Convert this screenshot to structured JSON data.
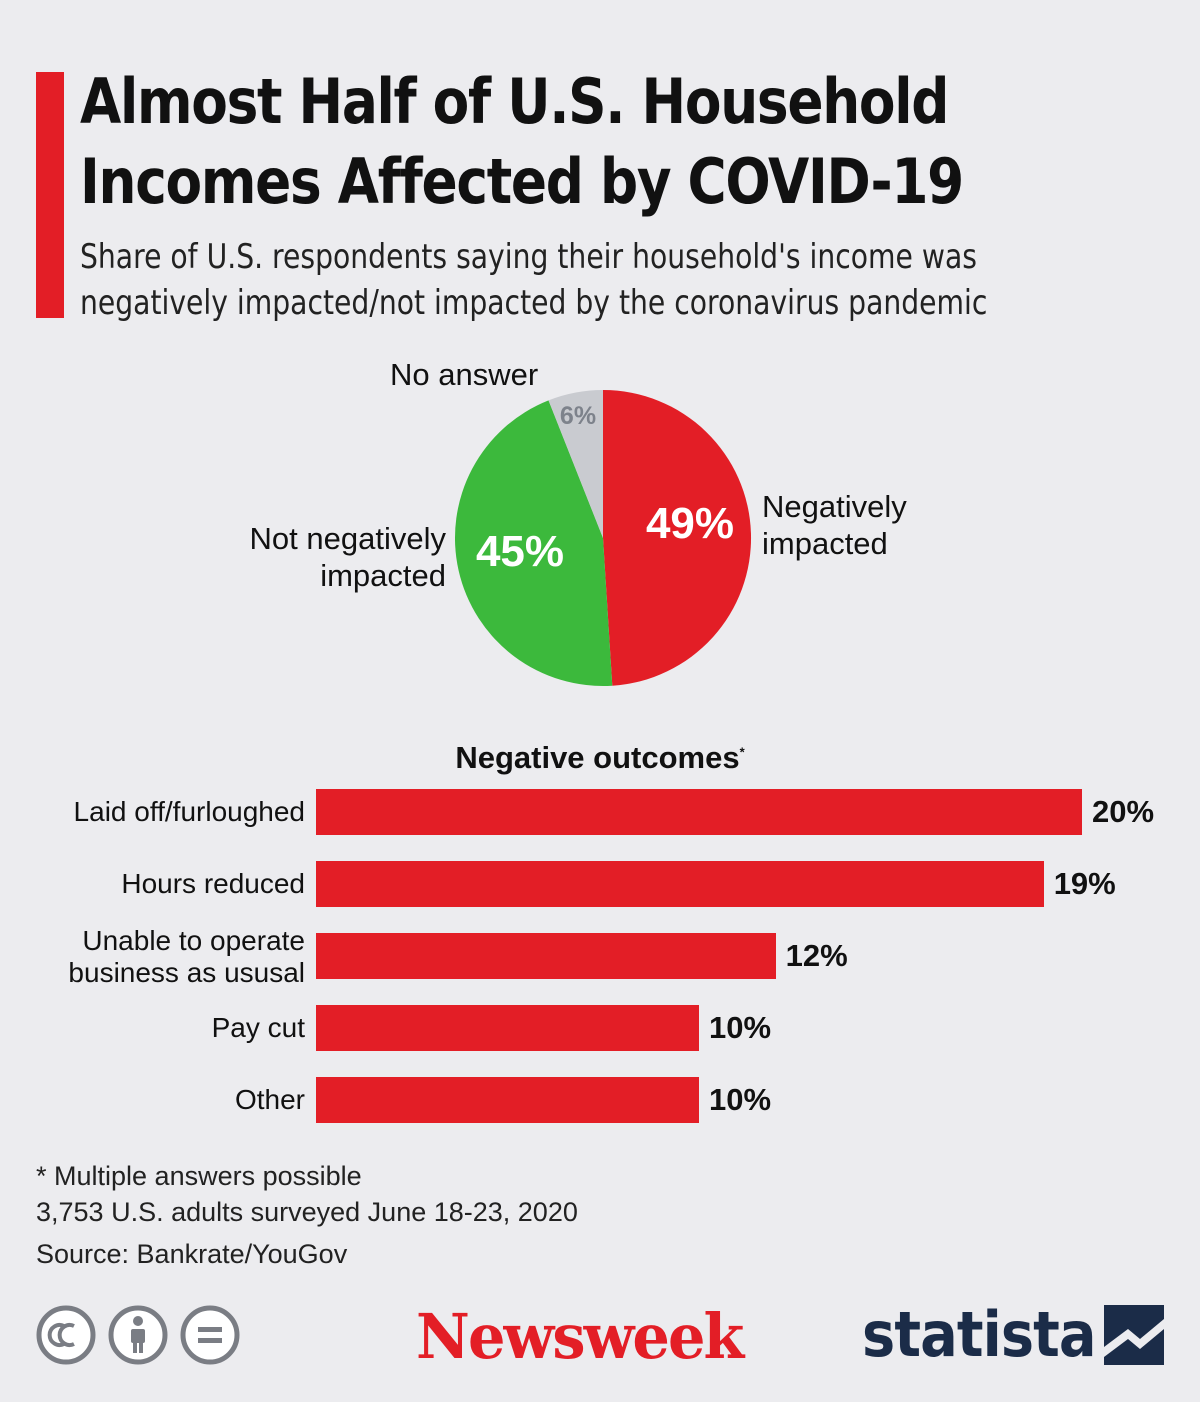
{
  "title_lines": [
    "Almost Half of U.S. Household",
    "Incomes Affected by COVID-19"
  ],
  "subtitle_lines": [
    "Share of U.S. respondents saying their household's income was",
    "negatively impacted/not impacted by the coronavirus pandemic"
  ],
  "colors": {
    "accent": "#e31e26",
    "green": "#3cb93c",
    "gray": "#c9cbd0",
    "navy": "#1b2c48"
  },
  "pie": {
    "labels": {
      "negative": [
        "Negatively",
        "impacted"
      ],
      "not_negative": [
        "Not negatively",
        "impacted"
      ],
      "no_answer": "No answer"
    },
    "value_labels": {
      "negative": "49%",
      "not_negative": "45%",
      "no_answer": "6%"
    }
  },
  "bars": {
    "title": "Negative outcomes",
    "title_mark": "*",
    "items": [
      {
        "label_lines": [
          "Laid off/furloughed"
        ],
        "value_label": "20%"
      },
      {
        "label_lines": [
          "Hours reduced"
        ],
        "value_label": "19%"
      },
      {
        "label_lines": [
          "Unable to operate",
          "business as ususal"
        ],
        "value_label": "12%"
      },
      {
        "label_lines": [
          "Pay cut"
        ],
        "value_label": "10%"
      },
      {
        "label_lines": [
          "Other"
        ],
        "value_label": "10%"
      }
    ]
  },
  "chart_data": [
    {
      "type": "pie",
      "categories": [
        "Negatively impacted",
        "Not negatively impacted",
        "No answer"
      ],
      "values": [
        49,
        45,
        6
      ],
      "unit": "%"
    },
    {
      "type": "bar",
      "title": "Negative outcomes*",
      "categories": [
        "Laid off/furloughed",
        "Hours reduced",
        "Unable to operate business as ususal",
        "Pay cut",
        "Other"
      ],
      "values": [
        20,
        19,
        12,
        10,
        10
      ],
      "unit": "%"
    }
  ],
  "notes": {
    "footnote": "* Multiple answers possible",
    "survey": "3,753 U.S. adults surveyed June 18-23, 2020",
    "source": "Source: Bankrate/YouGov"
  },
  "branding": {
    "newsweek": "Newsweek",
    "statista": "statista"
  },
  "license_icons": [
    "cc-icon",
    "attribution-icon",
    "no-derivatives-icon"
  ]
}
